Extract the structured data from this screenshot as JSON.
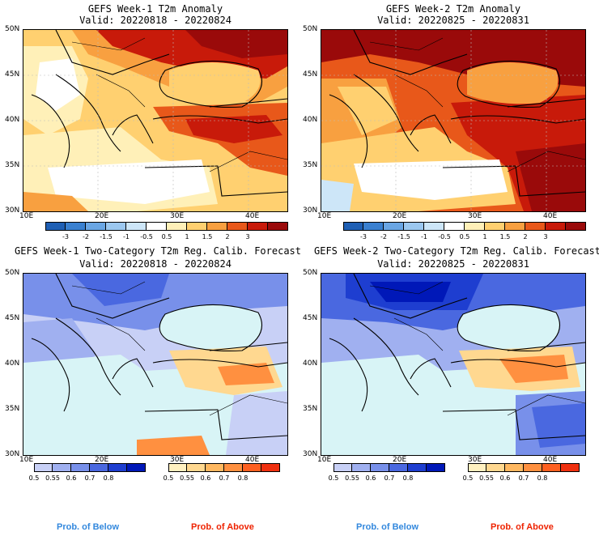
{
  "panels": [
    {
      "title": "GEFS Week-1 T2m Anomaly",
      "valid": "Valid: 20220818 - 20220824"
    },
    {
      "title": "GEFS Week-2 T2m Anomaly",
      "valid": "Valid: 20220825 - 20220831"
    },
    {
      "title": "GEFS Week-1 Two-Category T2m Reg. Calib. Forecast",
      "valid": "Valid: 20220818 - 20220824"
    },
    {
      "title": "GEFS Week-2 Two-Category T2m Reg. Calib. Forecast",
      "valid": "Valid: 20220825 - 20220831"
    }
  ],
  "lat_labels": [
    "50N",
    "45N",
    "40N",
    "35N",
    "30N"
  ],
  "lon_labels": [
    "10E",
    "20E",
    "30E",
    "40E"
  ],
  "anomaly_colorbar": {
    "labels": [
      "-3",
      "-2",
      "-1.5",
      "-1",
      "-0.5",
      "0.5",
      "1",
      "1.5",
      "2",
      "3"
    ],
    "colors": [
      "#1f5fb4",
      "#3a80d0",
      "#6aa6e4",
      "#9cc8f0",
      "#cde6f8",
      "#ffffff",
      "#fff0b8",
      "#ffd070",
      "#f8a040",
      "#e8581a",
      "#c81a0a",
      "#9a0a0a"
    ]
  },
  "below_colorbar": {
    "labels": [
      "0.5",
      "0.55",
      "0.6",
      "0.7",
      "0.8"
    ],
    "colors": [
      "#c8d0f6",
      "#a0b0f0",
      "#7890ea",
      "#4a68e0",
      "#1e3ed0",
      "#0018b8"
    ]
  },
  "above_colorbar": {
    "labels": [
      "0.5",
      "0.55",
      "0.6",
      "0.7",
      "0.8"
    ],
    "colors": [
      "#fff0c0",
      "#ffd890",
      "#ffb860",
      "#ff9040",
      "#ff6020",
      "#f03010"
    ]
  },
  "prob_labels": {
    "below": "Prob. of Below",
    "above": "Prob. of Above"
  },
  "colors": {
    "below_label": "#3388dd",
    "above_label": "#ee2200",
    "sea_prob": "#d8f4f6"
  }
}
